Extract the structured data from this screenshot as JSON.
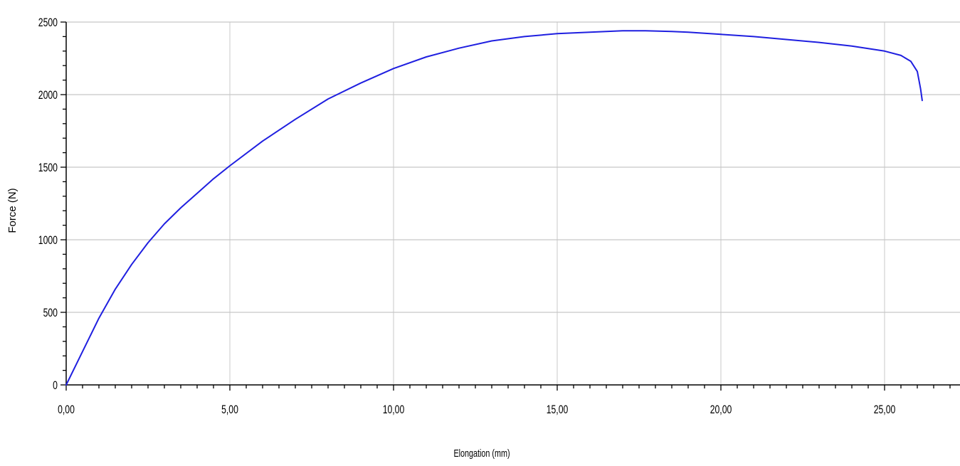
{
  "chart_data": {
    "type": "line",
    "title": "",
    "xlabel": "Elongation (mm)",
    "ylabel": "Force (N)",
    "xlim": [
      0,
      27.3
    ],
    "ylim": [
      0,
      2500
    ],
    "x_ticks": [
      0,
      5,
      10,
      15,
      20,
      25
    ],
    "x_tick_labels": [
      "0,00",
      "5,00",
      "10,00",
      "15,00",
      "20,00",
      "25,00"
    ],
    "y_ticks": [
      0,
      500,
      1000,
      1500,
      2000,
      2500
    ],
    "y_tick_labels": [
      "0",
      "500",
      "1000",
      "1500",
      "2000",
      "2500"
    ],
    "x_minor_step": 0.5,
    "y_minor_step": 100,
    "grid": true,
    "legend": "none",
    "colors": {
      "line": "#1f1fe0",
      "grid": "#c8c8c8",
      "axis": "#000000"
    },
    "series": [
      {
        "x": [
          0,
          0.5,
          1.0,
          1.5,
          2.0,
          2.5,
          3.0,
          3.5,
          4.0,
          4.5,
          5.0,
          6.0,
          7.0,
          8.0,
          9.0,
          10.0,
          11.0,
          12.0,
          13.0,
          14.0,
          15.0,
          16.0,
          17.0,
          17.7,
          18.5,
          19.0,
          20.0,
          21.0,
          22.0,
          23.0,
          24.0,
          25.0,
          25.5,
          25.8,
          26.0,
          26.05,
          26.1,
          26.15
        ],
        "y": [
          0,
          230,
          460,
          660,
          830,
          980,
          1110,
          1220,
          1320,
          1420,
          1510,
          1680,
          1830,
          1970,
          2080,
          2180,
          2260,
          2320,
          2370,
          2400,
          2420,
          2430,
          2440,
          2440,
          2435,
          2430,
          2415,
          2400,
          2380,
          2360,
          2335,
          2300,
          2270,
          2230,
          2160,
          2100,
          2040,
          1960
        ]
      }
    ]
  }
}
